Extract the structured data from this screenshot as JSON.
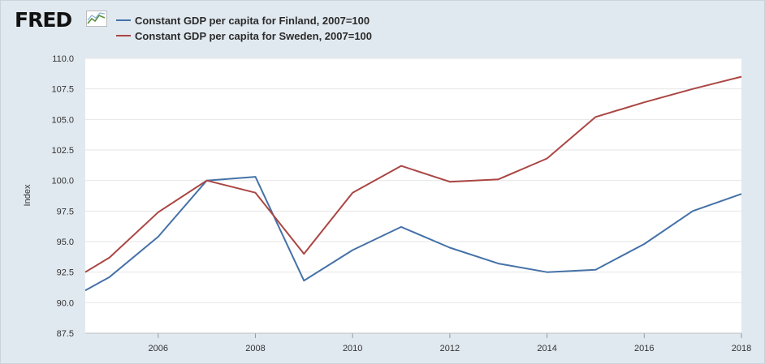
{
  "header": {
    "logo_text": "FRED"
  },
  "chart_data": {
    "type": "line",
    "title": "",
    "xlabel": "",
    "ylabel": "Index",
    "ylim": [
      87.5,
      110.0
    ],
    "xlim": [
      2004.5,
      2018
    ],
    "yticks": [
      "110.0",
      "107.5",
      "105.0",
      "102.5",
      "100.0",
      "97.5",
      "95.0",
      "92.5",
      "90.0",
      "87.5"
    ],
    "xticks": [
      "2006",
      "2008",
      "2010",
      "2012",
      "2014",
      "2016",
      "2018"
    ],
    "grid": true,
    "legend_position": "top-left",
    "x": [
      2004.5,
      2005,
      2006,
      2007,
      2008,
      2009,
      2010,
      2011,
      2012,
      2013,
      2014,
      2015,
      2016,
      2017,
      2018
    ],
    "series": [
      {
        "name": "Constant GDP per capita for Finland, 2007=100",
        "color": "#4572a7",
        "values": [
          91.0,
          92.1,
          95.4,
          100.0,
          100.3,
          91.8,
          94.3,
          96.2,
          94.5,
          93.2,
          92.5,
          92.7,
          94.8,
          97.5,
          98.9
        ]
      },
      {
        "name": "Constant GDP per capita for Sweden, 2007=100",
        "color": "#aa4643",
        "values": [
          92.5,
          93.7,
          97.4,
          100.0,
          99.0,
          94.0,
          99.0,
          101.2,
          99.9,
          100.1,
          101.8,
          105.2,
          106.4,
          107.5,
          108.5
        ]
      }
    ]
  }
}
